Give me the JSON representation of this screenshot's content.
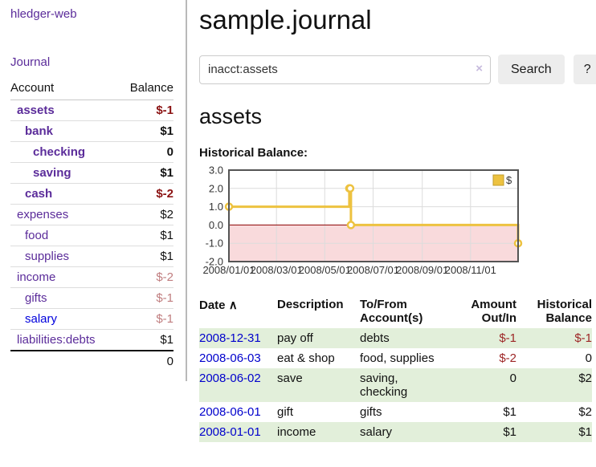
{
  "app": {
    "name": "hledger-web"
  },
  "header": {
    "title": "sample.journal"
  },
  "sidebar": {
    "journal_link": "Journal",
    "accounts_table": {
      "headers": {
        "account": "Account",
        "balance": "Balance"
      },
      "rows": [
        {
          "name": "assets",
          "level": 1,
          "bold": true,
          "balance": "$-1",
          "neg": "strong"
        },
        {
          "name": "bank",
          "level": 2,
          "bold": true,
          "balance": "$1"
        },
        {
          "name": "checking",
          "level": 3,
          "bold": true,
          "balance": "0"
        },
        {
          "name": "saving",
          "level": 3,
          "bold": true,
          "balance": "$1"
        },
        {
          "name": "cash",
          "level": 2,
          "bold": true,
          "balance": "$-2",
          "neg": "strong"
        },
        {
          "name": "expenses",
          "level": 1,
          "bold": false,
          "balance": "$2"
        },
        {
          "name": "food",
          "level": 2,
          "bold": false,
          "balance": "$1"
        },
        {
          "name": "supplies",
          "level": 2,
          "bold": false,
          "balance": "$1"
        },
        {
          "name": "income",
          "level": 1,
          "bold": false,
          "balance": "$-2",
          "neg": "muted"
        },
        {
          "name": "gifts",
          "level": 2,
          "bold": false,
          "balance": "$-1",
          "neg": "muted"
        },
        {
          "name": "salary",
          "level": 2,
          "bold": false,
          "balance": "$-1",
          "neg": "muted",
          "unvisited": true
        },
        {
          "name": "liabilities:debts",
          "level": 1,
          "bold": false,
          "balance": "$1"
        }
      ],
      "total": "0"
    }
  },
  "search": {
    "query": "inacct:assets",
    "clear_icon": "×",
    "button_label": "Search",
    "help_label": "?"
  },
  "account_page": {
    "heading": "assets",
    "chart_label": "Historical Balance:"
  },
  "chart_data": {
    "type": "line",
    "title": "Historical Balance:",
    "step": true,
    "series": [
      {
        "name": "$",
        "color": "#edc240",
        "points": [
          [
            "2008-01-01",
            1
          ],
          [
            "2008-06-01",
            2
          ],
          [
            "2008-06-02",
            2
          ],
          [
            "2008-06-03",
            0
          ],
          [
            "2008-12-31",
            -1
          ]
        ]
      }
    ],
    "x_range": [
      "2008-01-01",
      "2008-12-31"
    ],
    "ylim": [
      -2,
      3
    ],
    "yticks": [
      3,
      2,
      1,
      0,
      -1,
      -2
    ],
    "ytick_labels": [
      "3.0",
      "2.0",
      "1.0",
      "0.0",
      "-1.0",
      "-2.0"
    ],
    "xticks": [
      "2008-01-01",
      "2008-03-01",
      "2008-05-01",
      "2008-07-01",
      "2008-09-01",
      "2008-11-01"
    ],
    "xtick_labels": [
      "2008/01/01",
      "2008/03/01",
      "2008/05/01",
      "2008/07/01",
      "2008/09/01",
      "2008/11/01"
    ],
    "grid": true,
    "legend": {
      "label": "$",
      "position": "top-right"
    },
    "negative_region_color": "#f9dadc",
    "zero_line_color": "#8b0000",
    "grid_color": "#dcdcdc",
    "border_color": "#545454"
  },
  "register": {
    "headers": {
      "date": "Date",
      "sort_icon": "∧",
      "description": "Description",
      "accounts": "To/From Account(s)",
      "amount": "Amount Out/In",
      "balance": "Historical Balance"
    },
    "rows": [
      {
        "date": "2008-12-31",
        "description": "pay off",
        "accounts": "debts",
        "amount": "$-1",
        "amount_neg": true,
        "balance": "$-1",
        "balance_neg": true,
        "highlight": true
      },
      {
        "date": "2008-06-03",
        "description": "eat & shop",
        "accounts": "food, supplies",
        "amount": "$-2",
        "amount_neg": true,
        "balance": "0",
        "balance_neg": false,
        "highlight": false
      },
      {
        "date": "2008-06-02",
        "description": "save",
        "accounts": "saving,\nchecking",
        "amount": "0",
        "amount_neg": false,
        "balance": "$2",
        "balance_neg": false,
        "highlight": true
      },
      {
        "date": "2008-06-01",
        "description": "gift",
        "accounts": "gifts",
        "amount": "$1",
        "amount_neg": false,
        "balance": "$2",
        "balance_neg": false,
        "highlight": false
      },
      {
        "date": "2008-01-01",
        "description": "income",
        "accounts": "salary",
        "amount": "$1",
        "amount_neg": false,
        "balance": "$1",
        "balance_neg": false,
        "highlight": true
      }
    ]
  },
  "colors": {
    "link_purple": "#5b2c9a",
    "link_blue": "#0000cc",
    "negative_strong": "#8b1313",
    "negative_table": "#9d2626",
    "negative_muted": "#c07d7f",
    "row_highlight_green": "#e2efda",
    "chart_line_gold": "#edc240",
    "negative_region_pink": "#f9dadc",
    "zero_line_red": "#8b0000"
  }
}
